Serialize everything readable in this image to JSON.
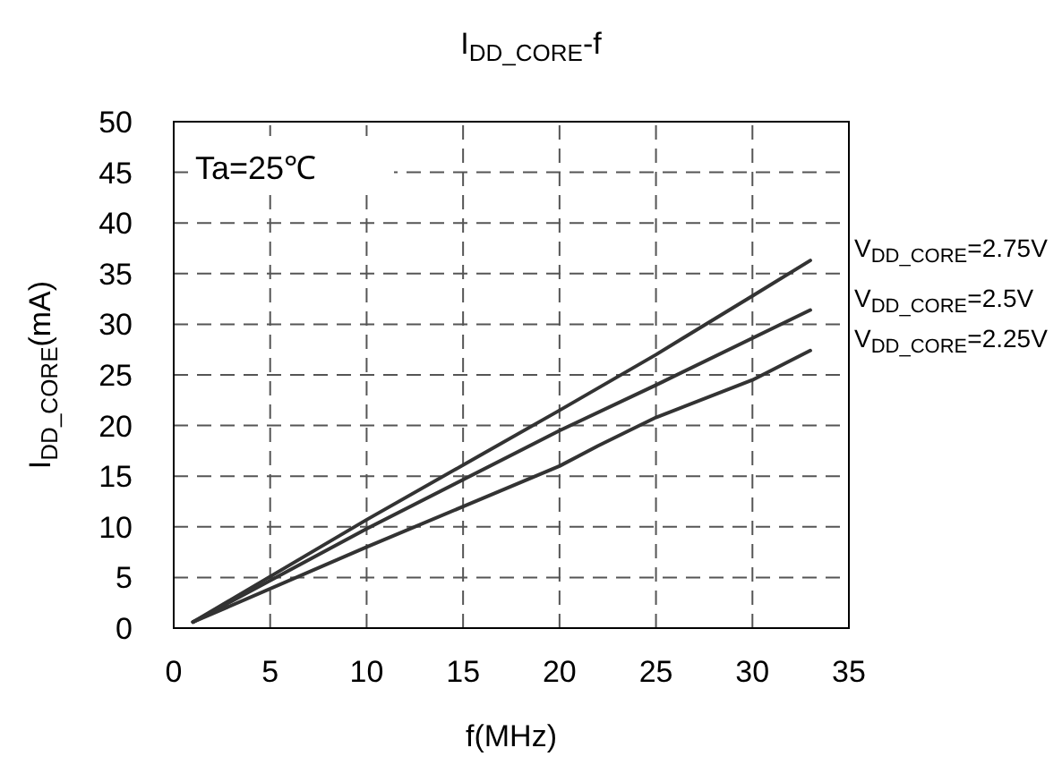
{
  "chart_data": {
    "type": "line",
    "title": "I$_{DD_CORE}$-f",
    "xlabel": "f(MHz)",
    "ylabel": "I$_{DD_CORE}$(mA)",
    "annotations": [
      "Ta=25℃"
    ],
    "xlim": [
      0,
      35
    ],
    "ylim": [
      0,
      50
    ],
    "xticks": [
      0,
      5,
      10,
      15,
      20,
      25,
      30,
      35
    ],
    "yticks": [
      0,
      5,
      10,
      15,
      20,
      25,
      30,
      35,
      40,
      45,
      50
    ],
    "grid": true,
    "legend": false,
    "marker": "none",
    "line_style": "solid",
    "series": [
      {
        "name": "V$_{DD_CORE}$=2.75V",
        "color": "#333333",
        "x": [
          1,
          10,
          20,
          25,
          30,
          33
        ],
        "values": [
          0.6,
          10.7,
          21.5,
          27,
          32.8,
          36.3
        ]
      },
      {
        "name": "V$_{DD_CORE}$=2.5V",
        "color": "#333333",
        "x": [
          1,
          10,
          20,
          25,
          33
        ],
        "values": [
          0.6,
          9.8,
          19.5,
          24,
          31.4
        ]
      },
      {
        "name": "V$_{DD_CORE}$=2.25V",
        "color": "#333333",
        "x": [
          1,
          10,
          15,
          20,
          22,
          25,
          30,
          33
        ],
        "values": [
          0.6,
          8,
          12,
          16,
          18,
          20.8,
          24.5,
          27.4
        ]
      }
    ]
  }
}
